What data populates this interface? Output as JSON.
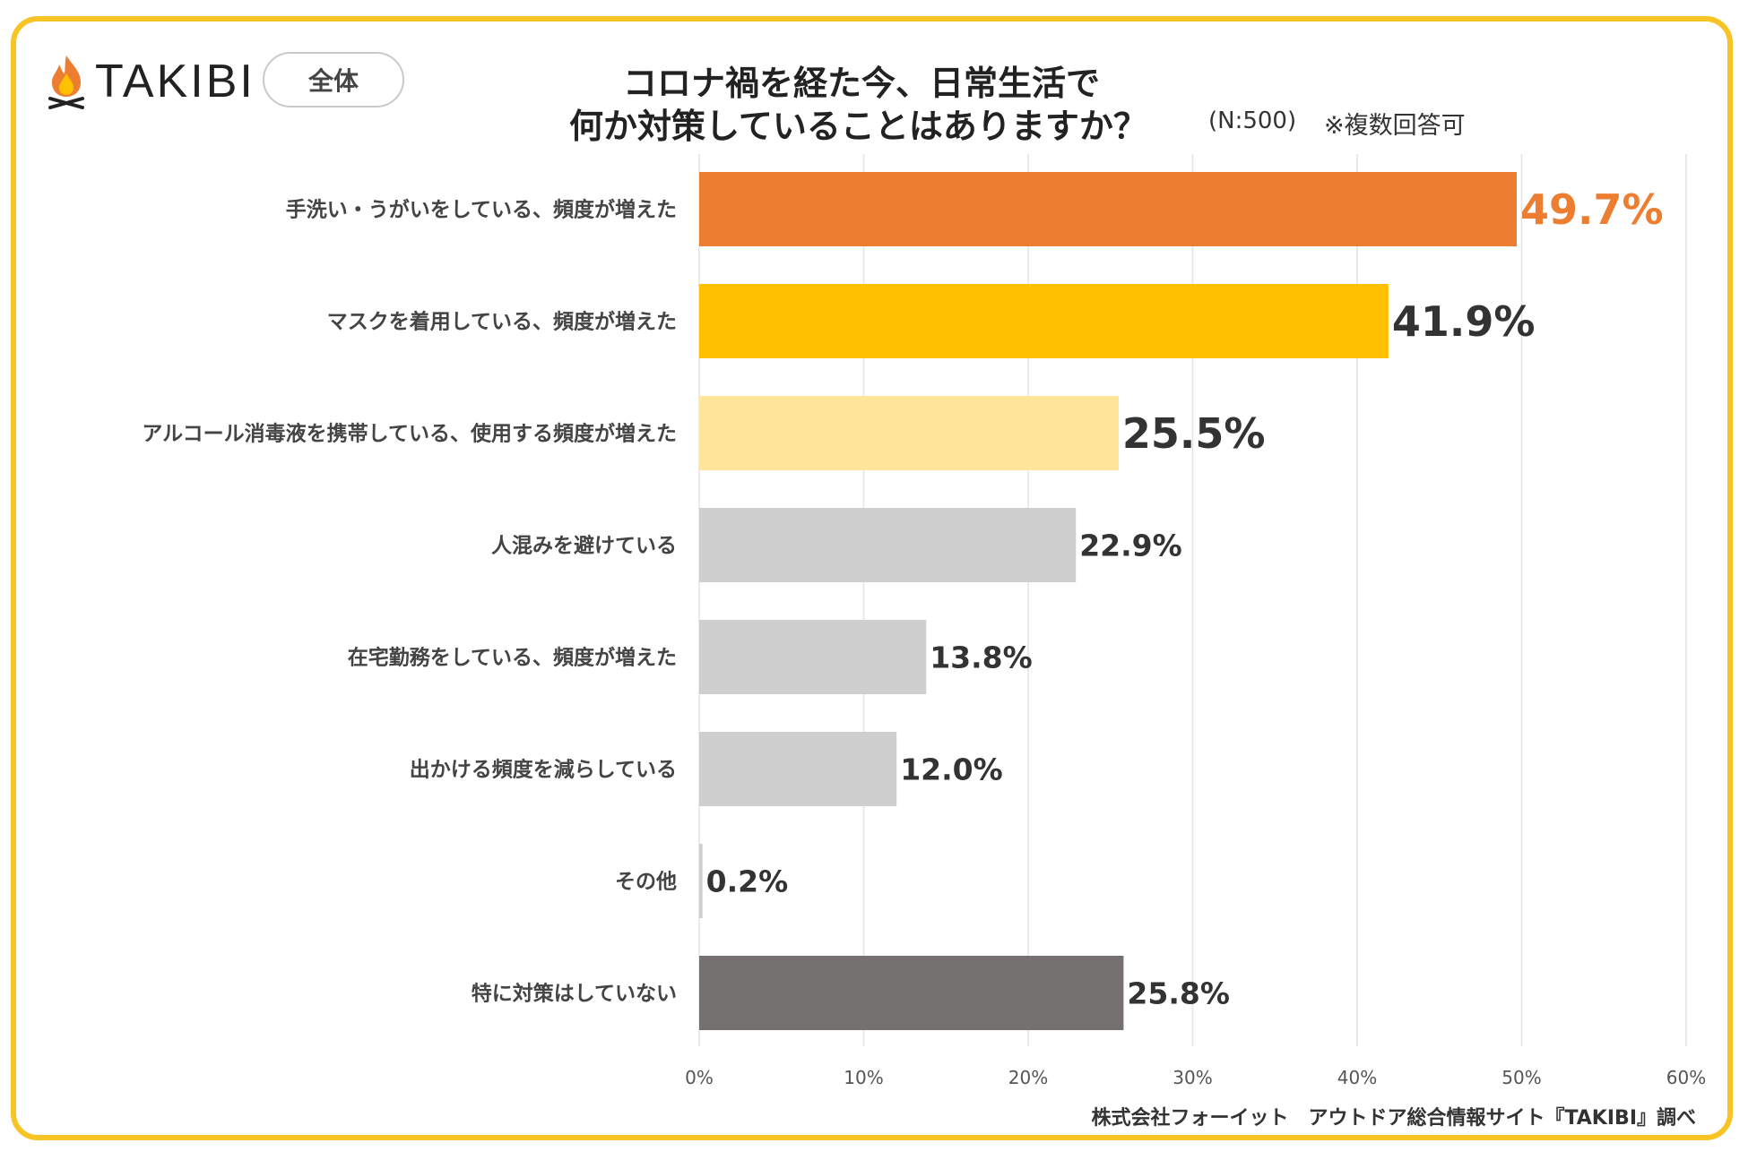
{
  "brand": {
    "name": "TAKIBI"
  },
  "segment": {
    "label": "全体"
  },
  "title": {
    "line1": "コロナ禍を経た今、日常生活で",
    "line2": "何か対策していることはありますか？"
  },
  "notes": {
    "sample": "(N:500)",
    "multi": "※複数回答可"
  },
  "colors": {
    "frame": "#f7c325",
    "top1": "#ec7d31",
    "top2": "#ffc000",
    "top3": "#ffe599",
    "other": "#d0cfcf",
    "none": "#767171"
  },
  "chart_data": {
    "type": "bar",
    "orientation": "horizontal",
    "title": "コロナ禍を経た今、日常生活で何か対策していることはありますか？",
    "categories": [
      "手洗い・うがいをしている、頻度が増えた",
      "マスクを着用している、頻度が増えた",
      "アルコール消毒液を携帯している、使用する頻度が増えた",
      "人混みを避けている",
      "在宅勤務をしている、頻度が増えた",
      "出かける頻度を減らしている",
      "その他",
      "特に対策はしていない"
    ],
    "values": [
      49.7,
      41.9,
      25.5,
      22.9,
      13.8,
      12.0,
      0.2,
      25.8
    ],
    "value_labels": [
      "49.7%",
      "41.9%",
      "25.5%",
      "22.9%",
      "13.8%",
      "12.0%",
      "0.2%",
      "25.8%"
    ],
    "bar_colors": [
      "#ec7d31",
      "#ffc000",
      "#ffe599",
      "#d0cfcf",
      "#d0cfcf",
      "#d0cfcf",
      "#d0cfcf",
      "#767171"
    ],
    "label_colors": [
      "#ec7d31",
      "#333333",
      "#333333",
      "#333333",
      "#333333",
      "#333333",
      "#333333",
      "#333333"
    ],
    "x_ticks": [
      0,
      10,
      20,
      30,
      40,
      50,
      60
    ],
    "x_tick_labels": [
      "0%",
      "10%",
      "20%",
      "30%",
      "40%",
      "50%",
      "60%"
    ],
    "xlim": [
      0,
      60
    ],
    "grid": true
  },
  "source": "株式会社フォーイット　アウトドア総合情報サイト『TAKIBI』調べ"
}
